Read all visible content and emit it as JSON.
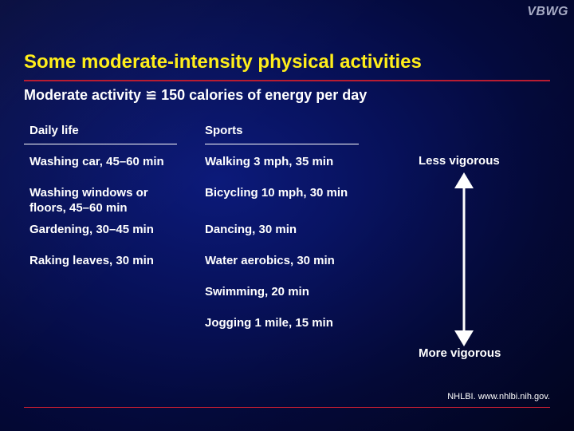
{
  "logo": "VBWG",
  "title": "Some moderate-intensity physical activities",
  "subtitle": "Moderate activity ≌ 150 calories of energy per day",
  "columns": {
    "daily_life": {
      "header": "Daily life",
      "items": [
        "Washing car, 45–60 min",
        "Washing windows or\nfloors, 45–60 min",
        "Gardening, 30–45 min",
        "Raking leaves, 30 min"
      ]
    },
    "sports": {
      "header": "Sports",
      "items": [
        "Walking 3 mph, 35 min",
        "Bicycling 10 mph, 30 min",
        "Dancing, 30 min",
        "Water aerobics, 30 min",
        "Swimming, 20 min",
        "Jogging 1 mile, 15 min"
      ]
    }
  },
  "scale": {
    "top_label": "Less vigorous",
    "bottom_label": "More vigorous"
  },
  "source": "NHLBI. www.nhlbi.nih.gov.",
  "colors": {
    "title": "#ffee1a",
    "rule": "#b81c32",
    "text": "#ffffff",
    "background": "#07115a"
  }
}
